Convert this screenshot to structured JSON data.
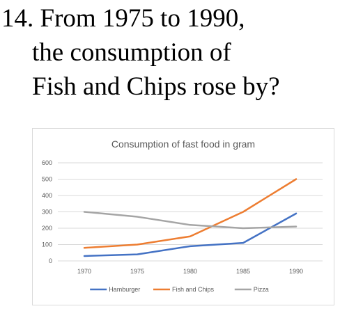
{
  "question": {
    "line1": "14. From 1975 to 1990,",
    "line2": "the consumption of",
    "line3": "Fish and Chips rose by?"
  },
  "chart_data": {
    "type": "line",
    "title": "Consumption of fast food in gram",
    "xlabel": "",
    "ylabel": "",
    "categories": [
      "1970",
      "1975",
      "1980",
      "1985",
      "1990"
    ],
    "ylim": [
      0,
      600
    ],
    "yticks": [
      0,
      100,
      200,
      300,
      400,
      500,
      600
    ],
    "grid": true,
    "legend_position": "bottom",
    "series": [
      {
        "name": "Hamburger",
        "color": "#4472c4",
        "values": [
          30,
          40,
          90,
          110,
          290
        ]
      },
      {
        "name": "Fish and Chips",
        "color": "#ed7d31",
        "values": [
          80,
          100,
          150,
          300,
          500
        ]
      },
      {
        "name": "Pizza",
        "color": "#a5a5a5",
        "values": [
          300,
          270,
          220,
          200,
          210
        ]
      }
    ]
  }
}
